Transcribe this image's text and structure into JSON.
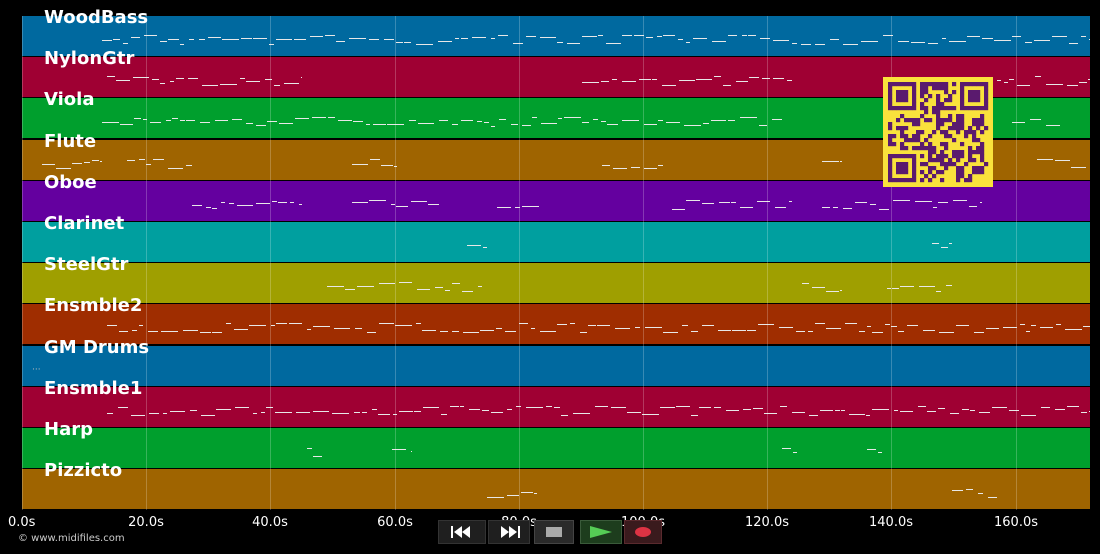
{
  "tracks": [
    {
      "name": "WoodBass",
      "color": "#00699f"
    },
    {
      "name": "NylonGtr",
      "color": "#9f0033"
    },
    {
      "name": "Viola",
      "color": "#009f2d"
    },
    {
      "name": "Flute",
      "color": "#9f6400"
    },
    {
      "name": "Oboe",
      "color": "#64009f"
    },
    {
      "name": "Clarinet",
      "color": "#009f9f"
    },
    {
      "name": "SteelGtr",
      "color": "#9f9f00"
    },
    {
      "name": "Ensmble2",
      "color": "#9f2d00"
    },
    {
      "name": "GM Drums",
      "color": "#00699f"
    },
    {
      "name": "Ensmble1",
      "color": "#9f0033"
    },
    {
      "name": "Harp",
      "color": "#009f2d"
    },
    {
      "name": "Pizzicto",
      "color": "#9f6400"
    }
  ],
  "timeline": {
    "ticks": [
      "0.0s",
      "20.0s",
      "40.0s",
      "60.0s",
      "80.0s",
      "100.0s",
      "120.0s",
      "140.0s",
      "160.0s"
    ]
  },
  "footer": {
    "copyright": "© www.midifiles.com"
  },
  "transport": {
    "rewind_icon": "rewind-icon",
    "fast_forward_icon": "fast-forward-icon",
    "stop_icon": "stop-icon",
    "play_icon": "play-icon",
    "record_icon": "record-icon",
    "play_color": "#55cc55",
    "record_color": "#dd3344"
  }
}
